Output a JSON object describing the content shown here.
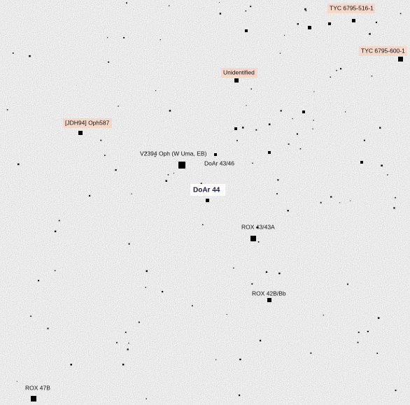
{
  "labels": [
    {
      "text": "TYC 6795-516-1"
    },
    {
      "text": "TYC 6795-600-1"
    },
    {
      "text": "Unidentified"
    },
    {
      "text": "[JDH94] Oph587"
    },
    {
      "text": "V2394 Oph (W Uma, EB)"
    },
    {
      "text": "DoAr 43/46"
    },
    {
      "text": "DoAr 44"
    },
    {
      "text": "ROX 43/43A"
    },
    {
      "text": "ROX 42B/Bb"
    },
    {
      "text": "ROX 47B"
    }
  ]
}
